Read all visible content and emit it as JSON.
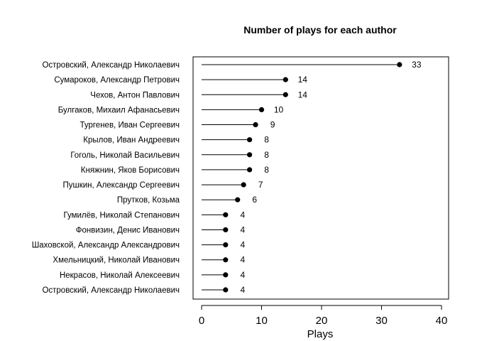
{
  "chart_data": {
    "type": "lollipop",
    "title": "Number of plays for each author",
    "xlabel": "Plays",
    "ylabel": "",
    "xlim": [
      0,
      40
    ],
    "xticks": [
      0,
      10,
      20,
      30,
      40
    ],
    "grid": false,
    "legend": "none",
    "colors": {
      "marker": "#000000",
      "stem": "#000000",
      "box": "#000000"
    },
    "categories": [
      "Островский, Александр Николаевич",
      "Сумароков, Александр Петрович",
      "Чехов, Антон Павлович",
      "Булгаков, Михаил Афанасьевич",
      "Тургенев, Иван Сергеевич",
      "Крылов, Иван Андреевич",
      "Гоголь, Николай Васильевич",
      "Княжнин, Яков Борисович",
      "Пушкин, Александр Сергеевич",
      "Прутков, Козьма",
      "Гумилёв, Николай Степанович",
      "Фонвизин, Денис Иванович",
      "Шаховской, Александр Александрович",
      "Хмельницкий, Николай Иванович",
      "Некрасов, Николай Алексеевич",
      "Островский, Александр Николаевич"
    ],
    "values": [
      33,
      14,
      14,
      10,
      9,
      8,
      8,
      8,
      7,
      6,
      4,
      4,
      4,
      4,
      4,
      4
    ]
  }
}
